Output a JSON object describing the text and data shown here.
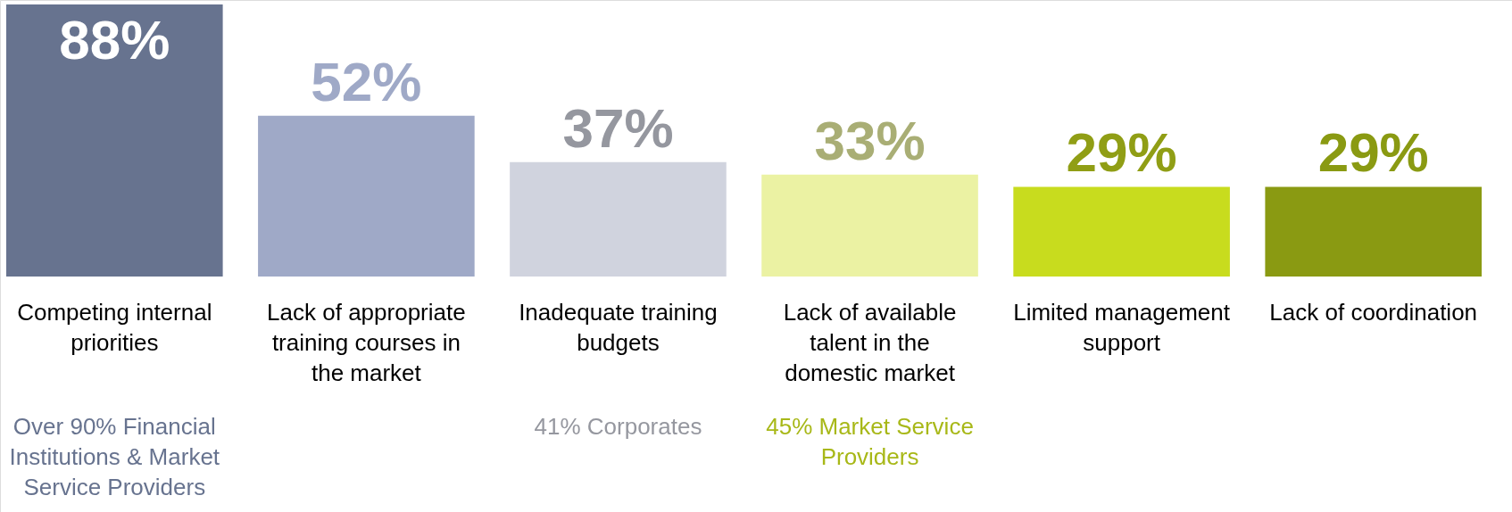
{
  "chart_data": {
    "type": "bar",
    "categories": [
      "Competing internal priorities",
      "Lack of appropriate training courses in the market",
      "Inadequate training budgets",
      "Lack of available talent in the domestic market",
      "Limited management support",
      "Lack of coordination"
    ],
    "values": [
      88,
      52,
      37,
      33,
      29,
      29
    ],
    "colors": [
      "#67738f",
      "#9fa9c7",
      "#d0d3de",
      "#ebf2a3",
      "#c8dc1e",
      "#8a9a12"
    ],
    "value_labels": [
      "88%",
      "52%",
      "37%",
      "33%",
      "29%",
      "29%"
    ],
    "annotations": [
      "Over 90% Financial Institutions & Market Service Providers",
      "41% Corporates",
      "45% Market Service Providers"
    ]
  }
}
